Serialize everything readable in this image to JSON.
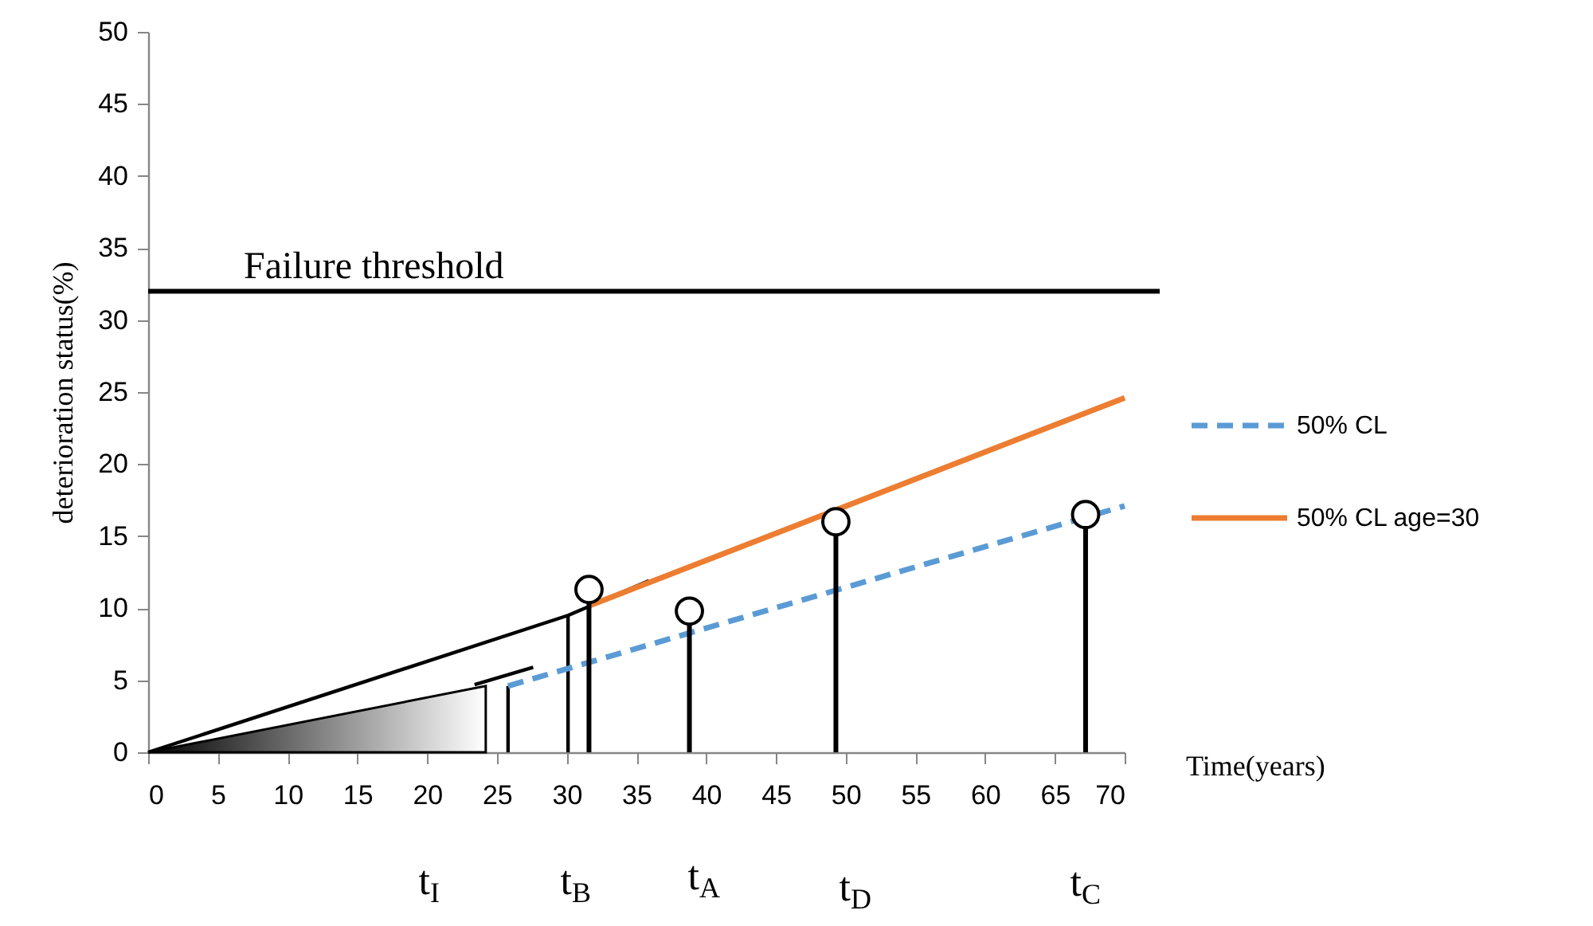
{
  "chart_data": {
    "type": "line",
    "xlabel": "Time(years)",
    "ylabel": "deterioration status(%)",
    "xlim": [
      0,
      70
    ],
    "xticks": [
      0,
      5,
      10,
      15,
      20,
      25,
      30,
      35,
      40,
      45,
      50,
      55,
      60,
      65,
      70
    ],
    "ylim": [
      0,
      50
    ],
    "yticks": [
      0,
      5,
      10,
      15,
      20,
      25,
      30,
      35,
      40,
      45,
      50
    ],
    "grid": false,
    "legend": "right",
    "series": [
      {
        "type": "area",
        "color": "#000000",
        "x": [
          0,
          24.2
        ],
        "values": [
          0,
          4.6
        ]
      },
      {
        "color": "#000000",
        "line_style": "solid",
        "x": [
          0,
          30.1,
          35.9
        ],
        "values": [
          0,
          9.5,
          11.9
        ]
      },
      {
        "color": "#000000",
        "line_style": "solid",
        "x": [
          23.4,
          27.6
        ],
        "values": [
          4.7,
          5.9
        ]
      },
      {
        "color": "#000000",
        "line_style": "solid",
        "x": [
          25.8,
          25.8
        ],
        "values": [
          0,
          4.6
        ]
      },
      {
        "color": "#000000",
        "line_style": "solid",
        "x": [
          30.1,
          30.1
        ],
        "values": [
          0,
          9.5
        ]
      },
      {
        "name": "50% CL",
        "color": "#5b9bd5",
        "line_style": "dashed",
        "x": [
          25.8,
          70
        ],
        "values": [
          4.6,
          17.1
        ]
      },
      {
        "name": "50% CL age=30",
        "color": "#ed7d31",
        "line_style": "solid",
        "x": [
          31.7,
          70
        ],
        "values": [
          10.2,
          24.6
        ]
      },
      {
        "type": "lollipop",
        "color": "#000000",
        "marker": "circle",
        "x": [
          31.6,
          38.8,
          49.3,
          67.2
        ],
        "values": [
          11.3,
          9.8,
          16.0,
          16.5
        ]
      }
    ],
    "ref_lines": [
      {
        "axis": "y",
        "value": 32,
        "label": "Failure threshold",
        "color": "#000000",
        "line_style": "solid"
      }
    ],
    "annotations": [
      "t$_{I}$",
      "t$_{B}$",
      "t$_{A}$",
      "t$_{D}$",
      "t$_{C}$"
    ]
  }
}
